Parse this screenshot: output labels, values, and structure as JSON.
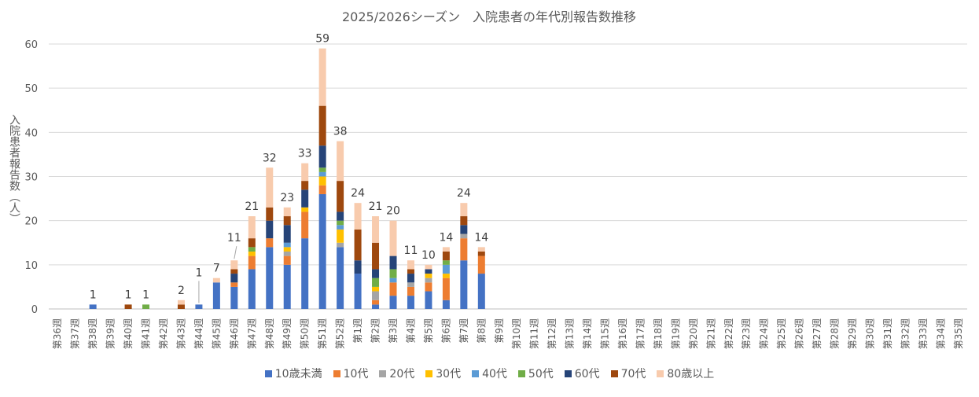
{
  "chart_data": {
    "type": "bar",
    "stacked": true,
    "title": "2025/2026シーズン　入院患者の年代別報告数推移",
    "xlabel": "",
    "ylabel": "入院患者報告数（人）",
    "ylim": [
      0,
      60
    ],
    "yticks": [
      0,
      10,
      20,
      30,
      40,
      50,
      60
    ],
    "grid": true,
    "legend_position": "bottom",
    "categories": [
      "第36週",
      "第37週",
      "第38週",
      "第39週",
      "第40週",
      "第41週",
      "第42週",
      "第43週",
      "第44週",
      "第45週",
      "第46週",
      "第47週",
      "第48週",
      "第49週",
      "第50週",
      "第51週",
      "第52週",
      "第1週",
      "第2週",
      "第3週",
      "第4週",
      "第5週",
      "第6週",
      "第7週",
      "第8週",
      "第9週",
      "第10週",
      "第11週",
      "第12週",
      "第13週",
      "第14週",
      "第15週",
      "第16週",
      "第17週",
      "第18週",
      "第19週",
      "第20週",
      "第21週",
      "第22週",
      "第23週",
      "第24週",
      "第25週",
      "第26週",
      "第27週",
      "第28週",
      "第29週",
      "第30週",
      "第31週",
      "第32週",
      "第33週",
      "第34週",
      "第35週"
    ],
    "series": [
      {
        "name": "10歳未満",
        "color": "#4472C4",
        "values": [
          0,
          0,
          1,
          0,
          0,
          0,
          0,
          0,
          1,
          6,
          5,
          9,
          14,
          10,
          16,
          26,
          14,
          8,
          1,
          3,
          3,
          4,
          2,
          11,
          8,
          0,
          0,
          0,
          0,
          0,
          0,
          0,
          0,
          0,
          0,
          0,
          0,
          0,
          0,
          0,
          0,
          0,
          0,
          0,
          0,
          0,
          0,
          0,
          0,
          0,
          0,
          0
        ]
      },
      {
        "name": "10代",
        "color": "#ED7D31",
        "values": [
          0,
          0,
          0,
          0,
          0,
          0,
          0,
          0,
          0,
          0,
          1,
          3,
          2,
          2,
          6,
          2,
          0,
          0,
          1,
          3,
          2,
          2,
          5,
          5,
          4,
          0,
          0,
          0,
          0,
          0,
          0,
          0,
          0,
          0,
          0,
          0,
          0,
          0,
          0,
          0,
          0,
          0,
          0,
          0,
          0,
          0,
          0,
          0,
          0,
          0,
          0,
          0
        ]
      },
      {
        "name": "20代",
        "color": "#A5A5A5",
        "values": [
          0,
          0,
          0,
          0,
          0,
          0,
          0,
          0,
          0,
          0,
          0,
          0,
          0,
          1,
          0,
          0,
          1,
          0,
          2,
          0,
          1,
          1,
          0,
          1,
          0,
          0,
          0,
          0,
          0,
          0,
          0,
          0,
          0,
          0,
          0,
          0,
          0,
          0,
          0,
          0,
          0,
          0,
          0,
          0,
          0,
          0,
          0,
          0,
          0,
          0,
          0,
          0
        ]
      },
      {
        "name": "30代",
        "color": "#FFC000",
        "values": [
          0,
          0,
          0,
          0,
          0,
          0,
          0,
          0,
          0,
          0,
          0,
          1,
          0,
          1,
          1,
          2,
          3,
          0,
          1,
          0,
          0,
          1,
          1,
          0,
          0,
          0,
          0,
          0,
          0,
          0,
          0,
          0,
          0,
          0,
          0,
          0,
          0,
          0,
          0,
          0,
          0,
          0,
          0,
          0,
          0,
          0,
          0,
          0,
          0,
          0,
          0,
          0
        ]
      },
      {
        "name": "40代",
        "color": "#5B9BD5",
        "values": [
          0,
          0,
          0,
          0,
          0,
          0,
          0,
          0,
          0,
          0,
          0,
          0,
          0,
          1,
          0,
          1,
          1,
          0,
          0,
          1,
          0,
          0,
          2,
          0,
          0,
          0,
          0,
          0,
          0,
          0,
          0,
          0,
          0,
          0,
          0,
          0,
          0,
          0,
          0,
          0,
          0,
          0,
          0,
          0,
          0,
          0,
          0,
          0,
          0,
          0,
          0,
          0
        ]
      },
      {
        "name": "50代",
        "color": "#70AD47",
        "values": [
          0,
          0,
          0,
          0,
          0,
          1,
          0,
          0,
          0,
          0,
          0,
          1,
          0,
          0,
          0,
          1,
          1,
          0,
          2,
          2,
          0,
          0,
          1,
          0,
          0,
          0,
          0,
          0,
          0,
          0,
          0,
          0,
          0,
          0,
          0,
          0,
          0,
          0,
          0,
          0,
          0,
          0,
          0,
          0,
          0,
          0,
          0,
          0,
          0,
          0,
          0,
          0
        ]
      },
      {
        "name": "60代",
        "color": "#264478",
        "values": [
          0,
          0,
          0,
          0,
          0,
          0,
          0,
          0,
          0,
          0,
          2,
          0,
          4,
          4,
          4,
          5,
          2,
          3,
          2,
          3,
          2,
          1,
          0,
          2,
          0,
          0,
          0,
          0,
          0,
          0,
          0,
          0,
          0,
          0,
          0,
          0,
          0,
          0,
          0,
          0,
          0,
          0,
          0,
          0,
          0,
          0,
          0,
          0,
          0,
          0,
          0,
          0
        ]
      },
      {
        "name": "70代",
        "color": "#9E480E",
        "values": [
          0,
          0,
          0,
          0,
          1,
          0,
          0,
          1,
          0,
          0,
          1,
          2,
          3,
          2,
          2,
          9,
          7,
          7,
          6,
          0,
          1,
          0,
          2,
          2,
          1,
          0,
          0,
          0,
          0,
          0,
          0,
          0,
          0,
          0,
          0,
          0,
          0,
          0,
          0,
          0,
          0,
          0,
          0,
          0,
          0,
          0,
          0,
          0,
          0,
          0,
          0,
          0
        ]
      },
      {
        "name": "80歳以上",
        "color": "#F8CBAD",
        "values": [
          0,
          0,
          0,
          0,
          0,
          0,
          0,
          1,
          0,
          1,
          2,
          5,
          9,
          2,
          4,
          13,
          9,
          6,
          6,
          8,
          2,
          1,
          1,
          3,
          1,
          0,
          0,
          0,
          0,
          0,
          0,
          0,
          0,
          0,
          0,
          0,
          0,
          0,
          0,
          0,
          0,
          0,
          0,
          0,
          0,
          0,
          0,
          0,
          0,
          0,
          0,
          0
        ]
      }
    ],
    "totals": [
      null,
      null,
      1,
      null,
      1,
      1,
      null,
      2,
      1,
      7,
      11,
      21,
      32,
      23,
      33,
      59,
      38,
      24,
      21,
      20,
      11,
      10,
      14,
      24,
      14,
      null,
      null,
      null,
      null,
      null,
      null,
      null,
      null,
      null,
      null,
      null,
      null,
      null,
      null,
      null,
      null,
      null,
      null,
      null,
      null,
      null,
      null,
      null,
      null,
      null,
      null,
      null
    ]
  }
}
